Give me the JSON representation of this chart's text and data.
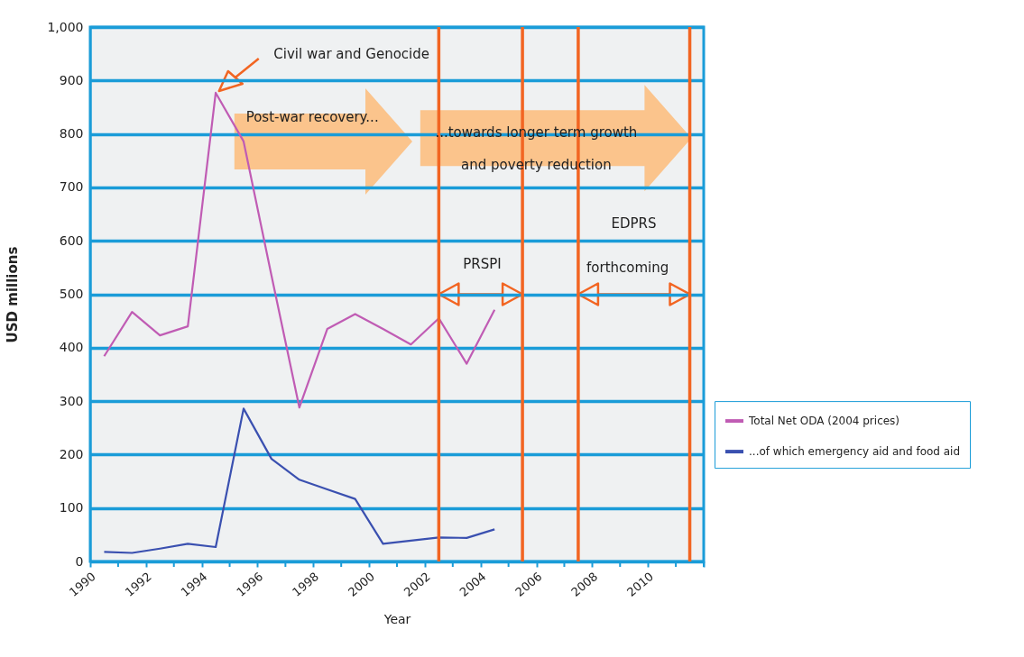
{
  "chart_data": {
    "type": "line",
    "xlabel": "Year",
    "ylabel": "USD millions",
    "x": [
      1990.5,
      1991.5,
      1992.5,
      1993.5,
      1994.5,
      1995.5,
      1996.5,
      1997.5,
      1998.5,
      1999.5,
      2000.5,
      2001.5,
      2002.5,
      2003.5,
      2004.5
    ],
    "series": [
      {
        "name": "Total Net ODA (2004 prices)",
        "color": "#c05cb4",
        "values": [
          384,
          467,
          423,
          440,
          877,
          786,
          535,
          288,
          435,
          463,
          435,
          406,
          455,
          370,
          471
        ]
      },
      {
        "name": "...of which emergency aid and food aid",
        "color": "#3a50b0",
        "values": [
          18,
          16,
          24,
          33,
          27,
          286,
          192,
          153,
          135,
          117,
          33,
          39,
          45,
          44,
          60
        ]
      }
    ],
    "xlim": [
      1990,
      2012
    ],
    "xticks": [
      1990,
      {
        "value": 1991,
        "label": null
      },
      1992,
      {
        "value": 1993,
        "label": null
      },
      1994,
      {
        "value": 1995,
        "label": null
      },
      1996,
      {
        "value": 1997,
        "label": null
      },
      1998,
      {
        "value": 1999,
        "label": null
      },
      2000,
      {
        "value": 2001,
        "label": null
      },
      2002,
      {
        "value": 2003,
        "label": null
      },
      2004,
      {
        "value": 2005,
        "label": null
      },
      2006,
      {
        "value": 2007,
        "label": null
      },
      2008,
      {
        "value": 2009,
        "label": null
      },
      2010,
      {
        "value": 2011,
        "label": null
      },
      {
        "value": 2012,
        "label": null
      }
    ],
    "ylim": [
      0,
      1000
    ],
    "yticks": [
      0,
      100,
      200,
      300,
      400,
      500,
      600,
      700,
      800,
      900,
      {
        "value": 1000,
        "label": "1,000"
      }
    ],
    "grid": "y",
    "legend": "right",
    "marker": "none",
    "line_style": "solid",
    "ref_lines": [
      {
        "axis": "x",
        "value": 2002.5,
        "color": "#f26522"
      },
      {
        "axis": "x",
        "value": 2005.5,
        "color": "#f26522"
      },
      {
        "axis": "x",
        "value": 2007.5,
        "color": "#f26522"
      },
      {
        "axis": "x",
        "value": 2011.5,
        "color": "#f26522"
      }
    ],
    "annotations": [
      "Civil war and Genocide",
      "Post-war recovery...",
      "...towards longer term growth\nand poverty reduction",
      "PRSPI",
      "EDPRS",
      "forthcoming"
    ]
  }
}
